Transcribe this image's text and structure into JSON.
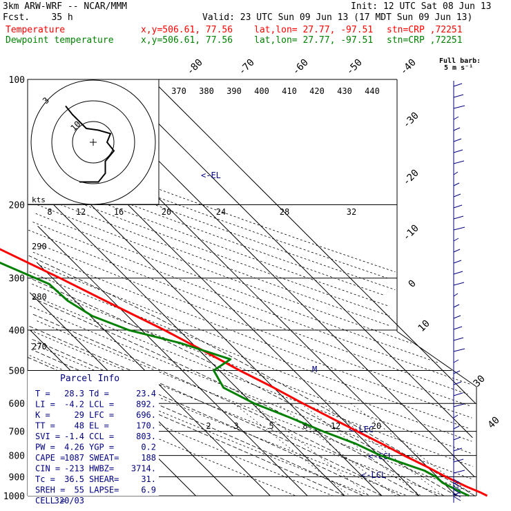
{
  "header": {
    "model": "3km ARW-WRF -- NCAR/MMM",
    "init": "Init: 12 UTC Sat 08 Jun 13",
    "fcst": "Fcst.    35 h",
    "valid": "Valid: 23 UTC Sun 09 Jun 13 (17 MDT Sun 09 Jun 13)",
    "temperature_label": "Temperature",
    "dewpoint_label": "Dewpoint temperature",
    "xy": "x,y=506.61, 77.56",
    "latlon": "lat,lon= 27.77, -97.51",
    "stn": "stn=CRP ,72251"
  },
  "barb_legend": {
    "title": "Full barb:",
    "value": "5 m s⁻¹"
  },
  "hodograph": {
    "units": "kts",
    "ring_labels": [
      "3",
      "10"
    ]
  },
  "parcel": {
    "title": "Parcel Info",
    "rows": [
      {
        "a": "T  =",
        "av": "28.3",
        "b": "Td =",
        "bv": "23.4"
      },
      {
        "a": "LI =",
        "av": "-4.2",
        "b": "LCL =",
        "bv": "892."
      },
      {
        "a": "K  =",
        "av": "29",
        "b": "LFC =",
        "bv": "696."
      },
      {
        "a": "TT =",
        "av": "48",
        "b": "EL  =",
        "bv": "170."
      },
      {
        "a": "SVI =",
        "av": "-1.4",
        "b": "CCL =",
        "bv": "803."
      },
      {
        "a": "PW =",
        "av": "4.26",
        "b": "YGP =",
        "bv": "0.2"
      },
      {
        "a": "CAPE =",
        "av": "1087",
        "b": "SWEAT=",
        "bv": "188"
      },
      {
        "a": "CIN =",
        "av": "-213",
        "b": "HWBZ=",
        "bv": "3714."
      },
      {
        "a": "Tc =",
        "av": "36.5",
        "b": "SHEAR=",
        "bv": "31."
      },
      {
        "a": "SREH =",
        "av": "55",
        "b": "LAPSE=",
        "bv": "6.9"
      },
      {
        "a": "CELL =",
        "av": "320/03",
        "b": "",
        "bv": ""
      }
    ]
  },
  "colors": {
    "temperature": "#ff0000",
    "dewpoint": "#008000",
    "annotation": "#000080",
    "grid": "#000000"
  },
  "chart_data": {
    "type": "line",
    "p_ticks": [
      "100",
      "200",
      "300",
      "400",
      "500",
      "600",
      "700",
      "800",
      "900",
      "1000"
    ],
    "skewed_temp_labels": [
      "-80",
      "-70",
      "-60",
      "-50",
      "-40",
      "-30",
      "-20",
      "-10",
      "0",
      "10",
      "30",
      "40"
    ],
    "theta_labels": [
      "370",
      "380",
      "390",
      "400",
      "410",
      "420",
      "430",
      "440"
    ],
    "mixing_ratio_labels_top": [
      "8",
      "12",
      "16",
      "20",
      "24",
      "28",
      "32"
    ],
    "mixing_ratio_labels_bottom": [
      "2",
      "3",
      "5",
      "8",
      "12",
      "20"
    ],
    "theta_labels_left": [
      "290",
      "280",
      "270"
    ],
    "level_markers": [
      "<-EL",
      "<-LFC",
      "<-CCL",
      "<-LCL",
      "M"
    ],
    "series": [
      {
        "name": "Temperature",
        "points": [
          [
            1000,
            28.3
          ],
          [
            980,
            27.3
          ],
          [
            950,
            25.2
          ],
          [
            900,
            22.3
          ],
          [
            850,
            19.8
          ],
          [
            800,
            16.8
          ],
          [
            750,
            14.0
          ],
          [
            700,
            10.7
          ],
          [
            650,
            7.3
          ],
          [
            600,
            3.6
          ],
          [
            550,
            0.0
          ],
          [
            500,
            -4.5
          ],
          [
            450,
            -8.8
          ],
          [
            400,
            -13.9
          ],
          [
            350,
            -20.5
          ],
          [
            300,
            -28.0
          ],
          [
            250,
            -37.5
          ],
          [
            200,
            -49.5
          ],
          [
            175,
            -57.0
          ],
          [
            150,
            -64.5
          ],
          [
            125,
            -67.5
          ],
          [
            100,
            -74.0
          ]
        ]
      },
      {
        "name": "Dewpoint temperature",
        "points": [
          [
            1000,
            23.4
          ],
          [
            980,
            22.3
          ],
          [
            950,
            20.8
          ],
          [
            930,
            19.8
          ],
          [
            900,
            19.6
          ],
          [
            870,
            18.2
          ],
          [
            850,
            16.0
          ],
          [
            800,
            10.5
          ],
          [
            750,
            7.0
          ],
          [
            700,
            1.5
          ],
          [
            650,
            -3.5
          ],
          [
            600,
            -9.5
          ],
          [
            550,
            -13.5
          ],
          [
            500,
            -11.5
          ],
          [
            470,
            -4.0
          ],
          [
            430,
            -13.0
          ],
          [
            400,
            -23.5
          ],
          [
            370,
            -29.5
          ],
          [
            340,
            -32.0
          ],
          [
            310,
            -32.5
          ],
          [
            280,
            -39.0
          ],
          [
            250,
            -46.0
          ],
          [
            220,
            -53.0
          ],
          [
            200,
            -61.0
          ],
          [
            175,
            -68.0
          ],
          [
            150,
            -76.0
          ],
          [
            135,
            -78.0
          ],
          [
            115,
            -81.0
          ],
          [
            100,
            -85.0
          ]
        ]
      }
    ],
    "hodograph_kts": [
      [
        -4,
        -11.5
      ],
      [
        1.5,
        -11.5
      ],
      [
        3.5,
        -9
      ],
      [
        3.5,
        -5.5
      ],
      [
        6,
        -2.5
      ],
      [
        4,
        0
      ],
      [
        5,
        2.5
      ],
      [
        1.5,
        3.5
      ],
      [
        -2,
        4
      ],
      [
        -6,
        8
      ],
      [
        -8,
        10.5
      ]
    ]
  }
}
